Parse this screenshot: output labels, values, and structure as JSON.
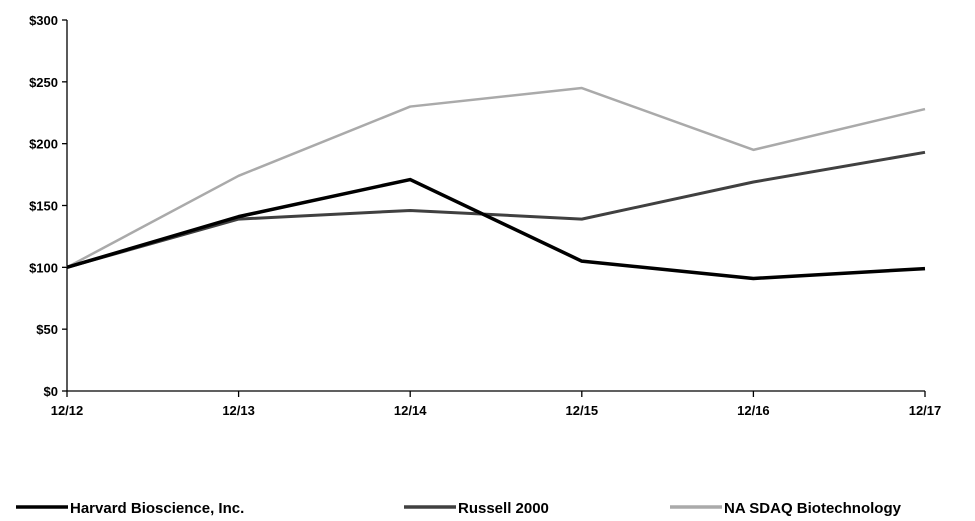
{
  "chart_data": {
    "type": "line",
    "categories": [
      "12/12",
      "12/13",
      "12/14",
      "12/15",
      "12/16",
      "12/17"
    ],
    "ylim": [
      0,
      300
    ],
    "yticks": [
      0,
      50,
      100,
      150,
      200,
      250,
      300
    ],
    "ytick_labels": [
      "$0",
      "$50",
      "$100",
      "$150",
      "$200",
      "$250",
      "$300"
    ],
    "grid": false,
    "legend_position": "bottom",
    "series": [
      {
        "name": "Harvard Bioscience, Inc.",
        "values": [
          100,
          141,
          171,
          105,
          91,
          99
        ],
        "color": "#000000"
      },
      {
        "name": "Russell 2000",
        "values": [
          100,
          139,
          146,
          139,
          169,
          193
        ],
        "color": "#404040"
      },
      {
        "name": "NA SDAQ Biotechnology",
        "values": [
          100,
          174,
          230,
          245,
          195,
          228
        ],
        "color": "#aaaaaa"
      }
    ]
  }
}
